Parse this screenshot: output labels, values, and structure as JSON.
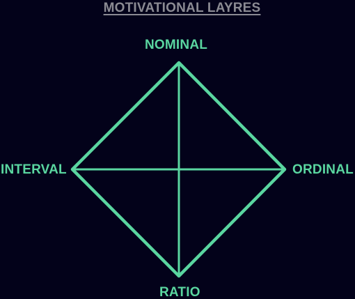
{
  "title": "MOTIVATIONAL LAYRES",
  "nodes": {
    "top": "NOMINAL",
    "right": "ORDINAL",
    "bottom": "RATIO",
    "left": "INTERVAL"
  },
  "colors": {
    "background": "#03021a",
    "accent": "#5ad6a0",
    "title": "#8b8b93"
  }
}
